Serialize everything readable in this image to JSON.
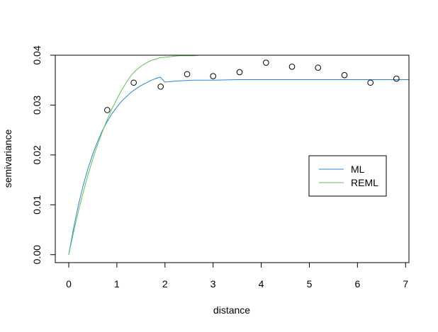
{
  "chart_data": {
    "type": "scatter",
    "title": "",
    "xlabel": "distance",
    "ylabel": "semivariance",
    "xlim": [
      -0.28,
      7.07
    ],
    "ylim": [
      -0.0016,
      0.04
    ],
    "xticks": [
      0,
      1,
      2,
      3,
      4,
      5,
      6,
      7
    ],
    "xtick_labels": [
      "0",
      "1",
      "2",
      "3",
      "4",
      "5",
      "6",
      "7"
    ],
    "yticks": [
      0.0,
      0.01,
      0.02,
      0.03,
      0.04
    ],
    "ytick_labels": [
      "0.00",
      "0.01",
      "0.02",
      "0.03",
      "0.04"
    ],
    "grid": false,
    "legend_position": "right",
    "points": {
      "x": [
        0.8,
        1.35,
        1.91,
        2.46,
        3.0,
        3.55,
        4.1,
        4.64,
        5.18,
        5.73,
        6.27,
        6.81
      ],
      "y": [
        0.029,
        0.0345,
        0.0337,
        0.0362,
        0.0358,
        0.0366,
        0.0385,
        0.0377,
        0.0375,
        0.036,
        0.0345,
        0.0353
      ]
    },
    "series": [
      {
        "name": "ML",
        "color": "#2b83d6",
        "x": [
          0.0,
          0.1,
          0.2,
          0.3,
          0.4,
          0.5,
          0.6,
          0.7,
          0.8,
          0.9,
          1.0,
          1.1,
          1.2,
          1.3,
          1.4,
          1.5,
          1.6,
          1.7,
          1.8,
          1.9,
          2.0,
          2.2,
          2.4,
          2.6,
          2.8,
          3.0,
          3.5,
          4.0,
          4.5,
          5.0,
          5.5,
          6.0,
          6.5,
          7.0,
          7.07
        ],
        "y": [
          0.0,
          0.0053,
          0.0099,
          0.0139,
          0.0173,
          0.0202,
          0.0227,
          0.0249,
          0.0267,
          0.0283,
          0.0296,
          0.0308,
          0.0317,
          0.0326,
          0.0333,
          0.0339,
          0.0344,
          0.0349,
          0.0353,
          0.0356,
          0.0346,
          0.0348,
          0.0349,
          0.035,
          0.035,
          0.035,
          0.0351,
          0.0351,
          0.0351,
          0.0351,
          0.0351,
          0.0351,
          0.0351,
          0.0351,
          0.0351
        ]
      },
      {
        "name": "REML",
        "color": "#5ec54d",
        "x": [
          0.0,
          0.1,
          0.2,
          0.3,
          0.4,
          0.5,
          0.6,
          0.7,
          0.8,
          0.9,
          1.0,
          1.1,
          1.2,
          1.3,
          1.4,
          1.5,
          1.6,
          1.7,
          1.8,
          1.9,
          2.0,
          2.1,
          2.2,
          2.3,
          2.4,
          2.5,
          2.6,
          2.7,
          2.8,
          2.9,
          3.0,
          3.5,
          4.0,
          5.0,
          6.0,
          7.0,
          7.07
        ],
        "y": [
          0.0,
          0.0045,
          0.0087,
          0.0125,
          0.016,
          0.0192,
          0.0221,
          0.0247,
          0.0271,
          0.0293,
          0.0312,
          0.033,
          0.0346,
          0.036,
          0.037,
          0.0378,
          0.0384,
          0.0389,
          0.0392,
          0.0395,
          0.0396,
          0.0397,
          0.0398,
          0.0399,
          0.0399,
          0.0399,
          0.0399,
          0.04,
          0.04,
          0.04,
          0.04,
          0.0401,
          0.0401,
          0.0401,
          0.0401,
          0.0401,
          0.0401
        ]
      }
    ]
  }
}
